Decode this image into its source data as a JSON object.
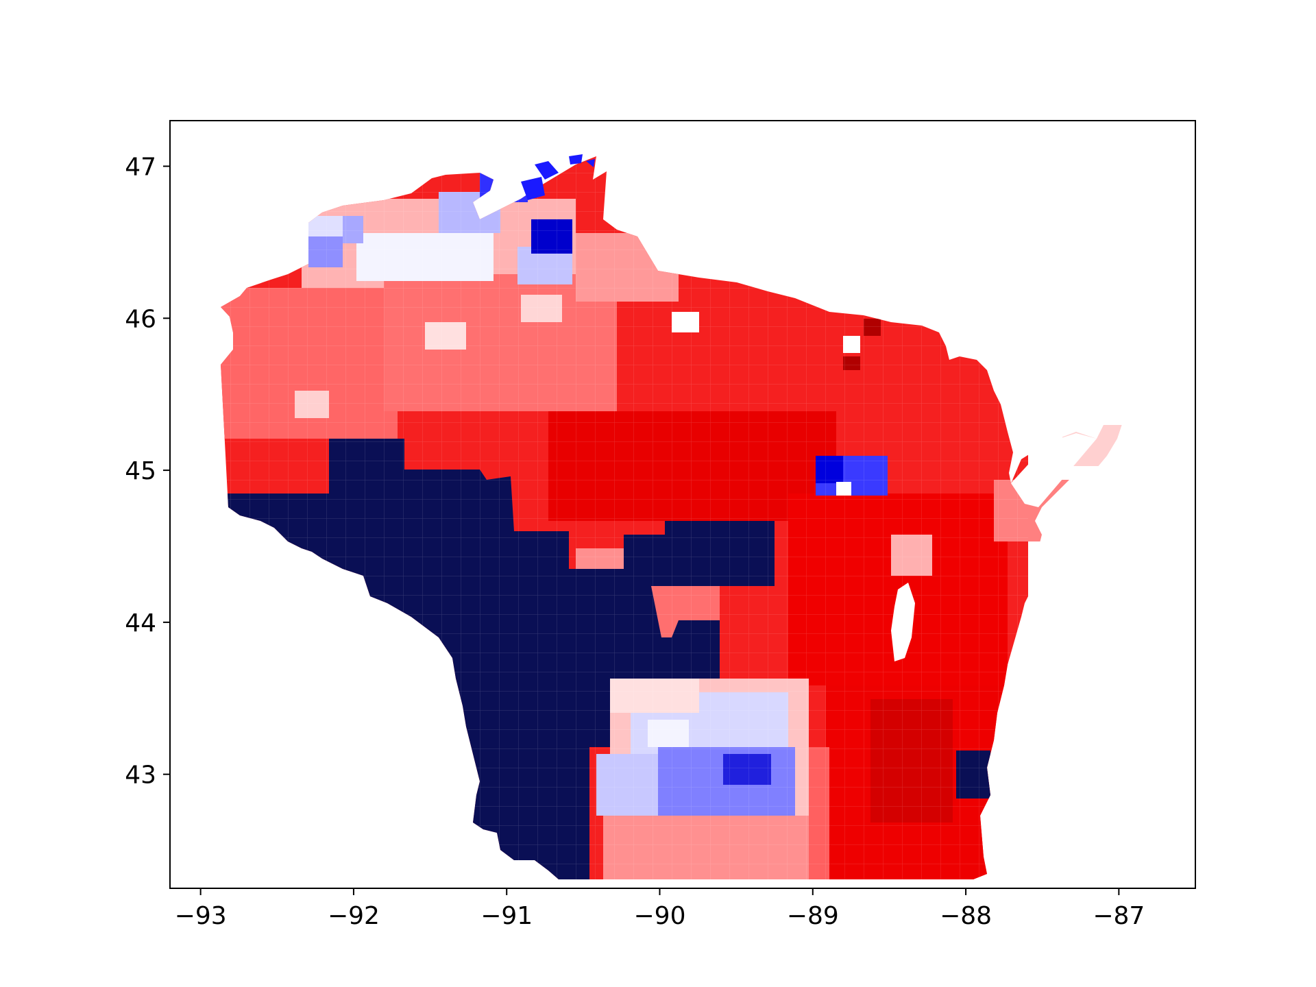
{
  "chart_data": {
    "type": "map",
    "xlim": [
      -93.2,
      -86.5
    ],
    "ylim": [
      42.25,
      47.3
    ],
    "x_ticks": [
      {
        "value": -93,
        "label": "−93"
      },
      {
        "value": -92,
        "label": "−92"
      },
      {
        "value": -91,
        "label": "−91"
      },
      {
        "value": -90,
        "label": "−90"
      },
      {
        "value": -89,
        "label": "−89"
      },
      {
        "value": -88,
        "label": "−88"
      },
      {
        "value": -87,
        "label": "−87"
      }
    ],
    "y_ticks": [
      {
        "value": 43,
        "label": "43"
      },
      {
        "value": 44,
        "label": "44"
      },
      {
        "value": 45,
        "label": "45"
      },
      {
        "value": 46,
        "label": "46"
      },
      {
        "value": 47,
        "label": "47"
      }
    ],
    "grid": false,
    "colors": {
      "navy": "#0a0f55",
      "red": "#f01414",
      "light_red": "#ff8a8a",
      "dark_red": "#b00000",
      "blue": "#1a1aff",
      "light_blue": "#c8c8ff",
      "white": "#ffffff"
    }
  }
}
